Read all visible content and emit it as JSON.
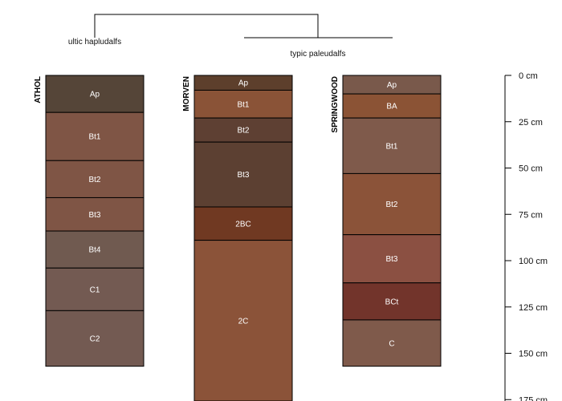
{
  "dendrogram": {
    "group_left_label": "ultic hapludalfs",
    "group_right_label": "typic paleudalfs"
  },
  "depth_axis": {
    "unit": "cm",
    "ticks": [
      0,
      25,
      50,
      75,
      100,
      125,
      150,
      175
    ],
    "labels": [
      "0 cm",
      "25 cm",
      "50 cm",
      "75 cm",
      "100 cm",
      "125 cm",
      "150 cm",
      "175 cm"
    ],
    "max_depth": 175
  },
  "profiles": [
    {
      "name": "ATHOL",
      "horizons": [
        {
          "name": "Ap",
          "top": 0,
          "bottom": 20,
          "color": "#554538"
        },
        {
          "name": "Bt1",
          "top": 20,
          "bottom": 46,
          "color": "#7f5545"
        },
        {
          "name": "Bt2",
          "top": 46,
          "bottom": 66,
          "color": "#7f5545"
        },
        {
          "name": "Bt3",
          "top": 66,
          "bottom": 84,
          "color": "#7f5545"
        },
        {
          "name": "Bt4",
          "top": 84,
          "bottom": 104,
          "color": "#705a50"
        },
        {
          "name": "C1",
          "top": 104,
          "bottom": 127,
          "color": "#735a52"
        },
        {
          "name": "C2",
          "top": 127,
          "bottom": 157,
          "color": "#735a52"
        }
      ]
    },
    {
      "name": "MORVEN",
      "horizons": [
        {
          "name": "Ap",
          "top": 0,
          "bottom": 8,
          "color": "#5d3f2c"
        },
        {
          "name": "Bt1",
          "top": 8,
          "bottom": 23,
          "color": "#8a5337"
        },
        {
          "name": "Bt2",
          "top": 23,
          "bottom": 36,
          "color": "#5e4033"
        },
        {
          "name": "Bt3",
          "top": 36,
          "bottom": 71,
          "color": "#5c4032"
        },
        {
          "name": "2BC",
          "top": 71,
          "bottom": 89,
          "color": "#703922"
        },
        {
          "name": "2C",
          "top": 89,
          "bottom": 180,
          "color": "#8b5339"
        }
      ]
    },
    {
      "name": "SPRINGWOOD",
      "horizons": [
        {
          "name": "Ap",
          "top": 0,
          "bottom": 10,
          "color": "#79594b"
        },
        {
          "name": "BA",
          "top": 10,
          "bottom": 23,
          "color": "#8b5335"
        },
        {
          "name": "Bt1",
          "top": 23,
          "bottom": 53,
          "color": "#7f5a4b"
        },
        {
          "name": "Bt2",
          "top": 53,
          "bottom": 86,
          "color": "#8b5339"
        },
        {
          "name": "Bt3",
          "top": 86,
          "bottom": 112,
          "color": "#8b5042"
        },
        {
          "name": "BCt",
          "top": 112,
          "bottom": 132,
          "color": "#72342b"
        },
        {
          "name": "C",
          "top": 132,
          "bottom": 157,
          "color": "#7f5a4b"
        }
      ]
    }
  ]
}
